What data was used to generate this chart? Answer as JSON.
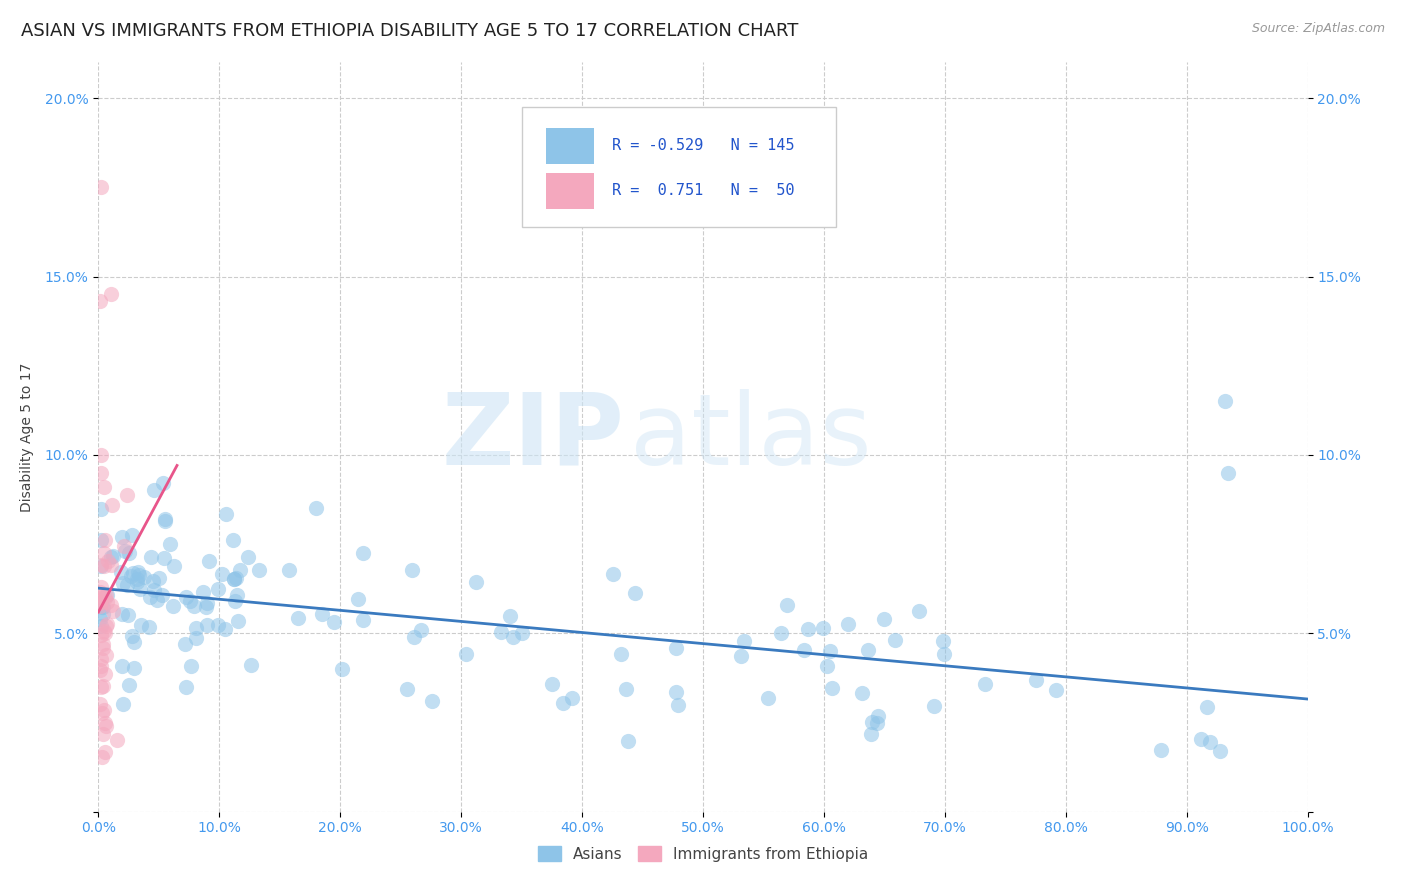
{
  "title": "ASIAN VS IMMIGRANTS FROM ETHIOPIA DISABILITY AGE 5 TO 17 CORRELATION CHART",
  "source": "Source: ZipAtlas.com",
  "ylabel": "Disability Age 5 to 17",
  "watermark_zip": "ZIP",
  "watermark_atlas": "atlas",
  "xlim": [
    0,
    1.0
  ],
  "ylim": [
    0,
    0.21
  ],
  "xtick_vals": [
    0.0,
    0.1,
    0.2,
    0.3,
    0.4,
    0.5,
    0.6,
    0.7,
    0.8,
    0.9,
    1.0
  ],
  "ytick_vals": [
    0.0,
    0.05,
    0.1,
    0.15,
    0.2
  ],
  "ytick_labels": [
    "",
    "5.0%",
    "10.0%",
    "15.0%",
    "20.0%"
  ],
  "xtick_labels": [
    "0.0%",
    "10.0%",
    "20.0%",
    "30.0%",
    "40.0%",
    "50.0%",
    "60.0%",
    "70.0%",
    "80.0%",
    "90.0%",
    "100.0%"
  ],
  "asian_color": "#8ec4e8",
  "ethiopia_color": "#f4a8be",
  "asian_line_color": "#3a7abf",
  "ethiopia_line_color": "#e8558a",
  "asian_R": -0.529,
  "asian_N": 145,
  "ethiopia_R": 0.751,
  "ethiopia_N": 50,
  "legend_label_asian": "Asians",
  "legend_label_ethiopia": "Immigrants from Ethiopia",
  "title_fontsize": 13,
  "axis_label_fontsize": 10,
  "tick_fontsize": 10,
  "tick_color": "#4499ee",
  "background_color": "#ffffff",
  "grid_color": "#cccccc",
  "dot_size": 120,
  "dot_alpha": 0.55
}
